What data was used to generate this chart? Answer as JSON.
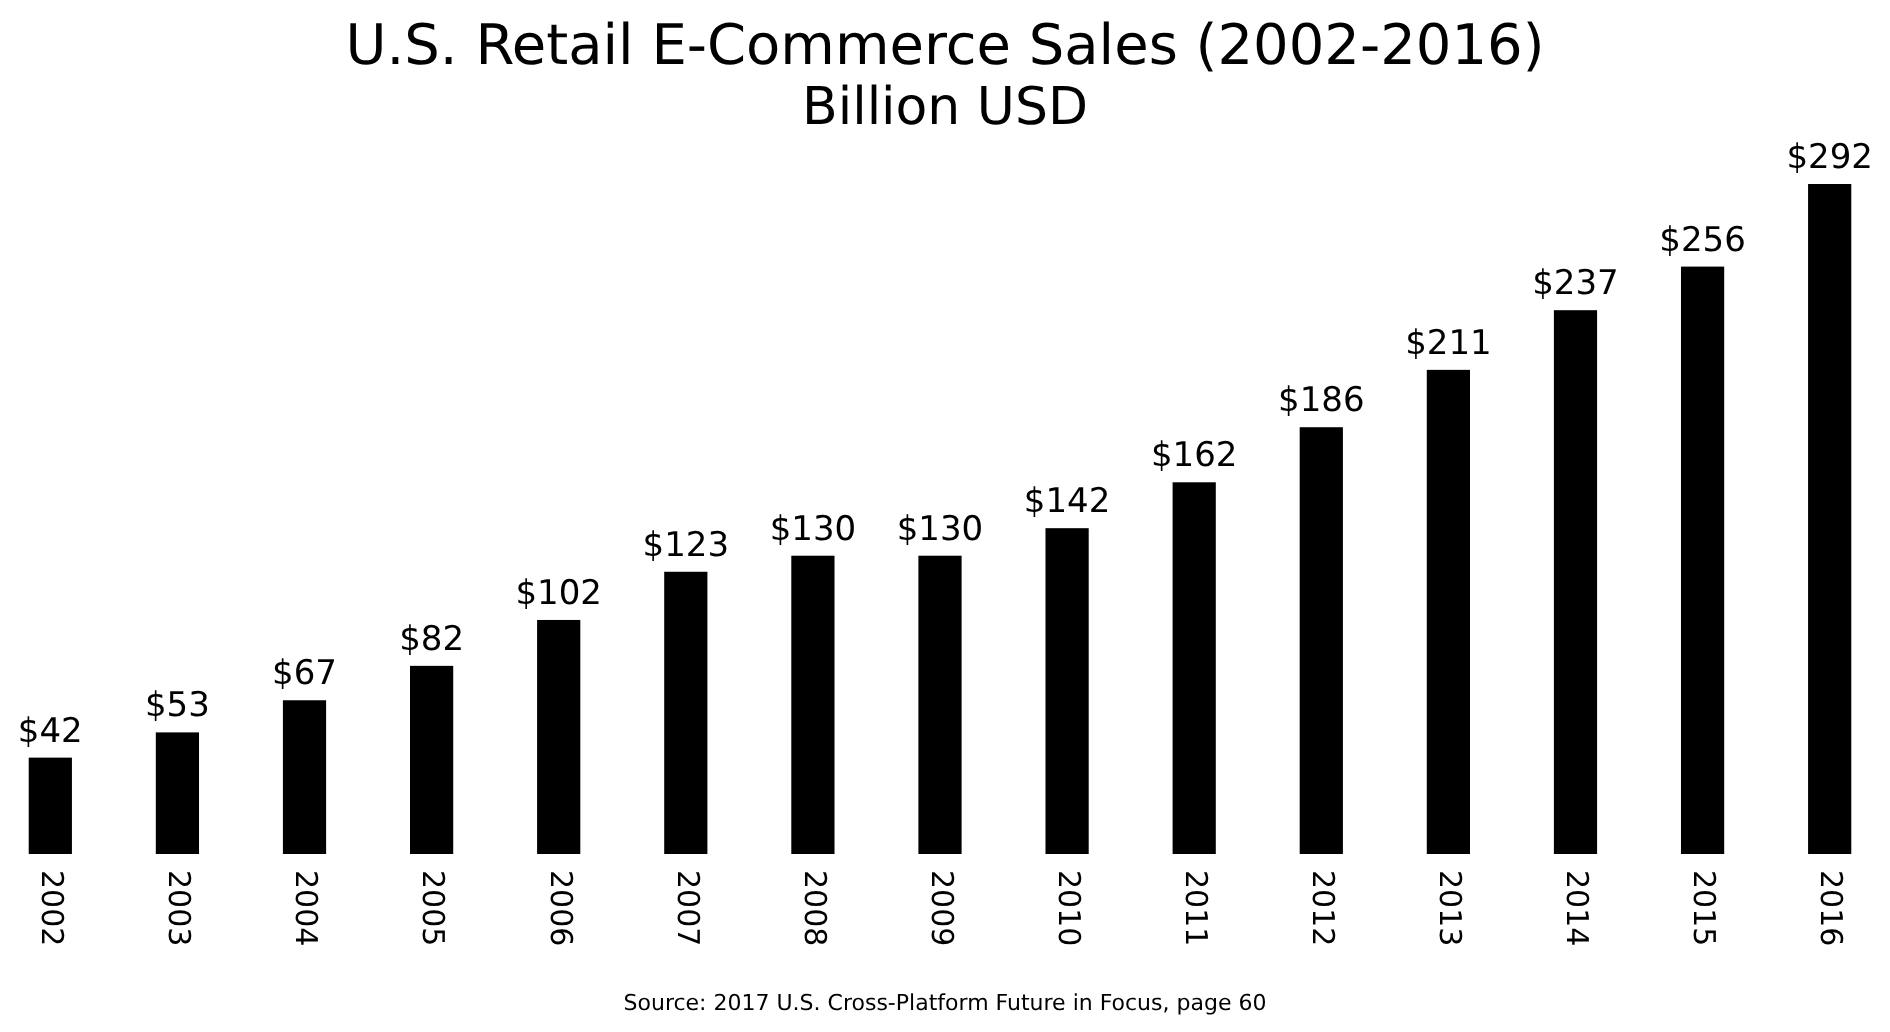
{
  "chart_data": {
    "type": "bar",
    "title": "U.S. Retail E-Commerce Sales (2002-2016)",
    "subtitle": "Billion USD",
    "categories": [
      "2002",
      "2003",
      "2004",
      "2005",
      "2006",
      "2007",
      "2008",
      "2009",
      "2010",
      "2011",
      "2012",
      "2013",
      "2014",
      "2015",
      "2016"
    ],
    "values": [
      42,
      53,
      67,
      82,
      102,
      123,
      130,
      130,
      142,
      162,
      186,
      211,
      237,
      256,
      292
    ],
    "value_labels": [
      "$42",
      "$53",
      "$67",
      "$82",
      "$102",
      "$123",
      "$130",
      "$130",
      "$142",
      "$162",
      "$186",
      "$211",
      "$237",
      "$256",
      "$292"
    ],
    "color": "#000000",
    "annotations": [
      "Source: 2017 U.S. Cross-Platform Future in Focus, page 60"
    ]
  }
}
